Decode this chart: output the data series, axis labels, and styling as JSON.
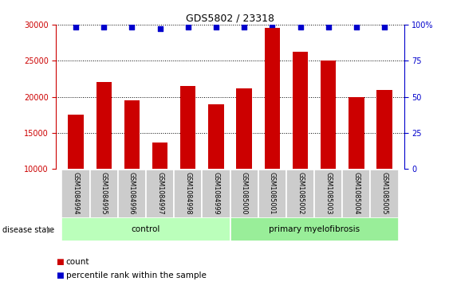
{
  "title": "GDS5802 / 23318",
  "samples": [
    "GSM1084994",
    "GSM1084995",
    "GSM1084996",
    "GSM1084997",
    "GSM1084998",
    "GSM1084999",
    "GSM1085000",
    "GSM1085001",
    "GSM1085002",
    "GSM1085003",
    "GSM1085004",
    "GSM1085005"
  ],
  "counts": [
    17500,
    22000,
    19500,
    13700,
    21500,
    19000,
    21200,
    29500,
    26200,
    25000,
    20000,
    21000
  ],
  "percentiles": [
    98,
    98,
    98,
    97,
    98,
    98,
    98,
    100,
    98,
    98,
    98,
    98
  ],
  "bar_color": "#cc0000",
  "dot_color": "#0000cc",
  "ylim_left": [
    10000,
    30000
  ],
  "ylim_right": [
    0,
    100
  ],
  "yticks_left": [
    10000,
    15000,
    20000,
    25000,
    30000
  ],
  "yticks_right": [
    0,
    25,
    50,
    75,
    100
  ],
  "groups": [
    {
      "label": "control",
      "start": 0,
      "end": 6,
      "color": "#bbffbb"
    },
    {
      "label": "primary myelofibrosis",
      "start": 6,
      "end": 12,
      "color": "#99ee99"
    }
  ],
  "disease_state_label": "disease state",
  "legend_count_label": "count",
  "legend_percentile_label": "percentile rank within the sample",
  "axis_color_left": "#cc0000",
  "axis_color_right": "#0000cc",
  "bg_color": "#ffffff",
  "plot_bg_color": "#ffffff",
  "tick_label_color_left": "#cc0000",
  "tick_label_color_right": "#0000cc",
  "label_box_color": "#cccccc",
  "n_samples": 12,
  "n_control": 6,
  "bar_bottom": 10000
}
